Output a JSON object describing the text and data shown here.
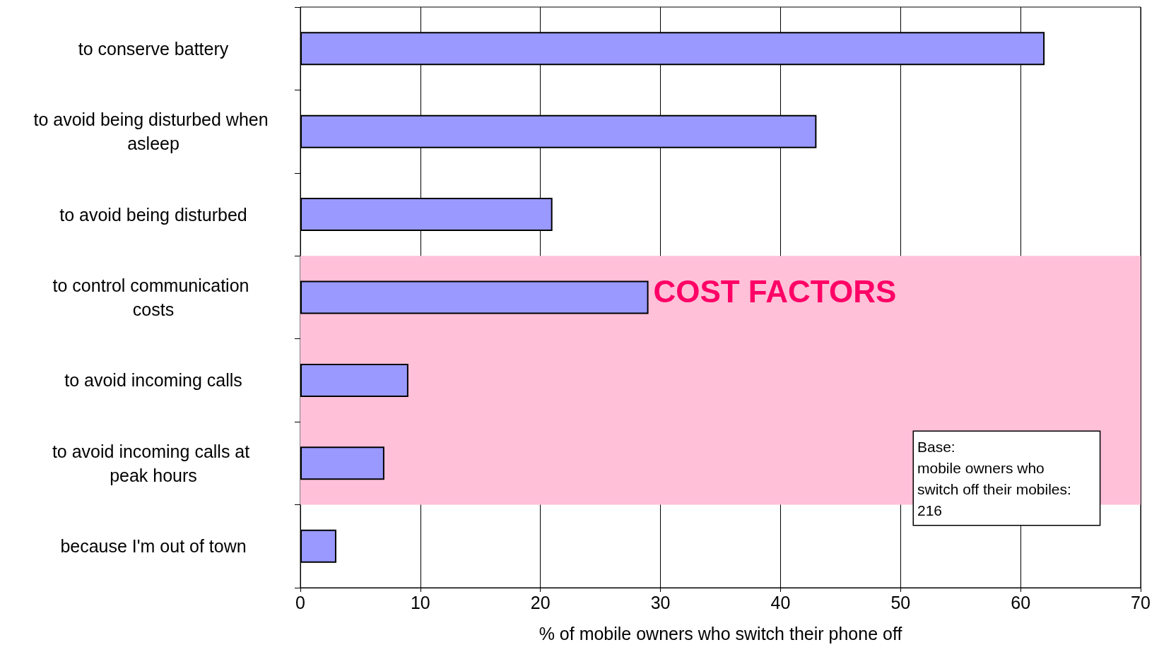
{
  "chart_data": {
    "type": "bar",
    "orientation": "horizontal",
    "xlabel": "% of mobile owners who switch their phone off",
    "categories": [
      "to conserve battery",
      "to avoid being disturbed when asleep",
      "to avoid being disturbed",
      "to control communication costs",
      "to avoid incoming calls",
      "to avoid incoming calls at peak hours",
      "because I'm out of town"
    ],
    "values": [
      62,
      43,
      21,
      29,
      9,
      7,
      3
    ],
    "color": "#9999ff",
    "xlim": [
      0,
      70
    ],
    "xticks": [
      0,
      10,
      20,
      30,
      40,
      50,
      60,
      70
    ],
    "grid": "x",
    "bands": [
      {
        "axis": "y",
        "from": "to control communication costs",
        "to": "to avoid incoming calls at peak hours",
        "label": "COST FACTORS",
        "color": "#ffc0d8"
      }
    ],
    "annotations": [
      "Base:\nmobile owners who\nswitch off their mobiles:\n216"
    ]
  }
}
